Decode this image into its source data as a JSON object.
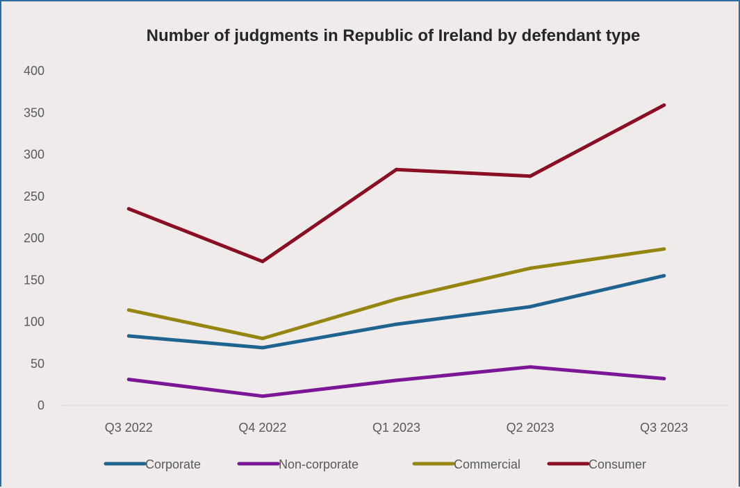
{
  "chart_data": {
    "type": "line",
    "title": "Number of judgments in Republic of Ireland by defendant type",
    "xlabel": "",
    "ylabel": "",
    "categories": [
      "Q3 2022",
      "Q4 2022",
      "Q1 2023",
      "Q2 2023",
      "Q3 2023"
    ],
    "ylim": [
      0,
      400
    ],
    "yticks": [
      "0",
      "50",
      "100",
      "150",
      "200",
      "250",
      "300",
      "350",
      "400"
    ],
    "grid": false,
    "legend_position": "bottom",
    "series": [
      {
        "name": "Corporate",
        "color": "#1f6391",
        "values": [
          83,
          69,
          97,
          118,
          155
        ]
      },
      {
        "name": "Non-corporate",
        "color": "#7b1796",
        "values": [
          31,
          11,
          30,
          46,
          32
        ]
      },
      {
        "name": "Commercial",
        "color": "#958511",
        "values": [
          114,
          80,
          127,
          164,
          187
        ]
      },
      {
        "name": "Consumer",
        "color": "#8b0f24",
        "values": [
          235,
          172,
          282,
          274,
          359
        ]
      }
    ]
  }
}
